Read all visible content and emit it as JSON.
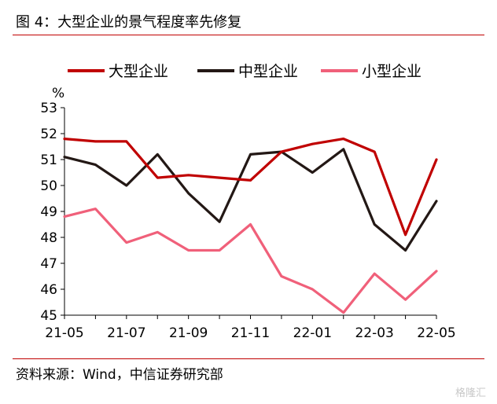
{
  "header": {
    "title": "图 4：大型企业的景气程度率先修复"
  },
  "footer": {
    "source": "资料来源：Wind，中信证券研究部",
    "watermark": "格隆汇"
  },
  "chart_data": {
    "type": "line",
    "title": "图 4：大型企业的景气程度率先修复",
    "ylabel": "%",
    "xlabel": "",
    "ylim": [
      45,
      53
    ],
    "yticks": [
      45,
      46,
      47,
      48,
      49,
      50,
      51,
      52,
      53
    ],
    "grid": false,
    "legend": "top",
    "x": [
      "21-05",
      "21-06",
      "21-07",
      "21-08",
      "21-09",
      "21-10",
      "21-11",
      "21-12",
      "22-01",
      "22-02",
      "22-03",
      "22-04",
      "22-05"
    ],
    "xtick_labels": [
      "21-05",
      "21-07",
      "21-09",
      "21-11",
      "22-01",
      "22-03",
      "22-05"
    ],
    "series": [
      {
        "name": "大型企业",
        "color": "#c00000",
        "values": [
          51.8,
          51.7,
          51.7,
          50.3,
          50.4,
          50.3,
          50.2,
          51.3,
          51.6,
          51.8,
          51.3,
          48.1,
          51.0
        ]
      },
      {
        "name": "中型企业",
        "color": "#231815",
        "values": [
          51.1,
          50.8,
          50.0,
          51.2,
          49.7,
          48.6,
          51.2,
          51.3,
          50.5,
          51.4,
          48.5,
          47.5,
          49.4
        ]
      },
      {
        "name": "小型企业",
        "color": "#f0607a",
        "values": [
          48.8,
          49.1,
          47.8,
          48.2,
          47.5,
          47.5,
          48.5,
          46.5,
          46.0,
          45.1,
          46.6,
          45.6,
          46.7
        ]
      }
    ]
  }
}
